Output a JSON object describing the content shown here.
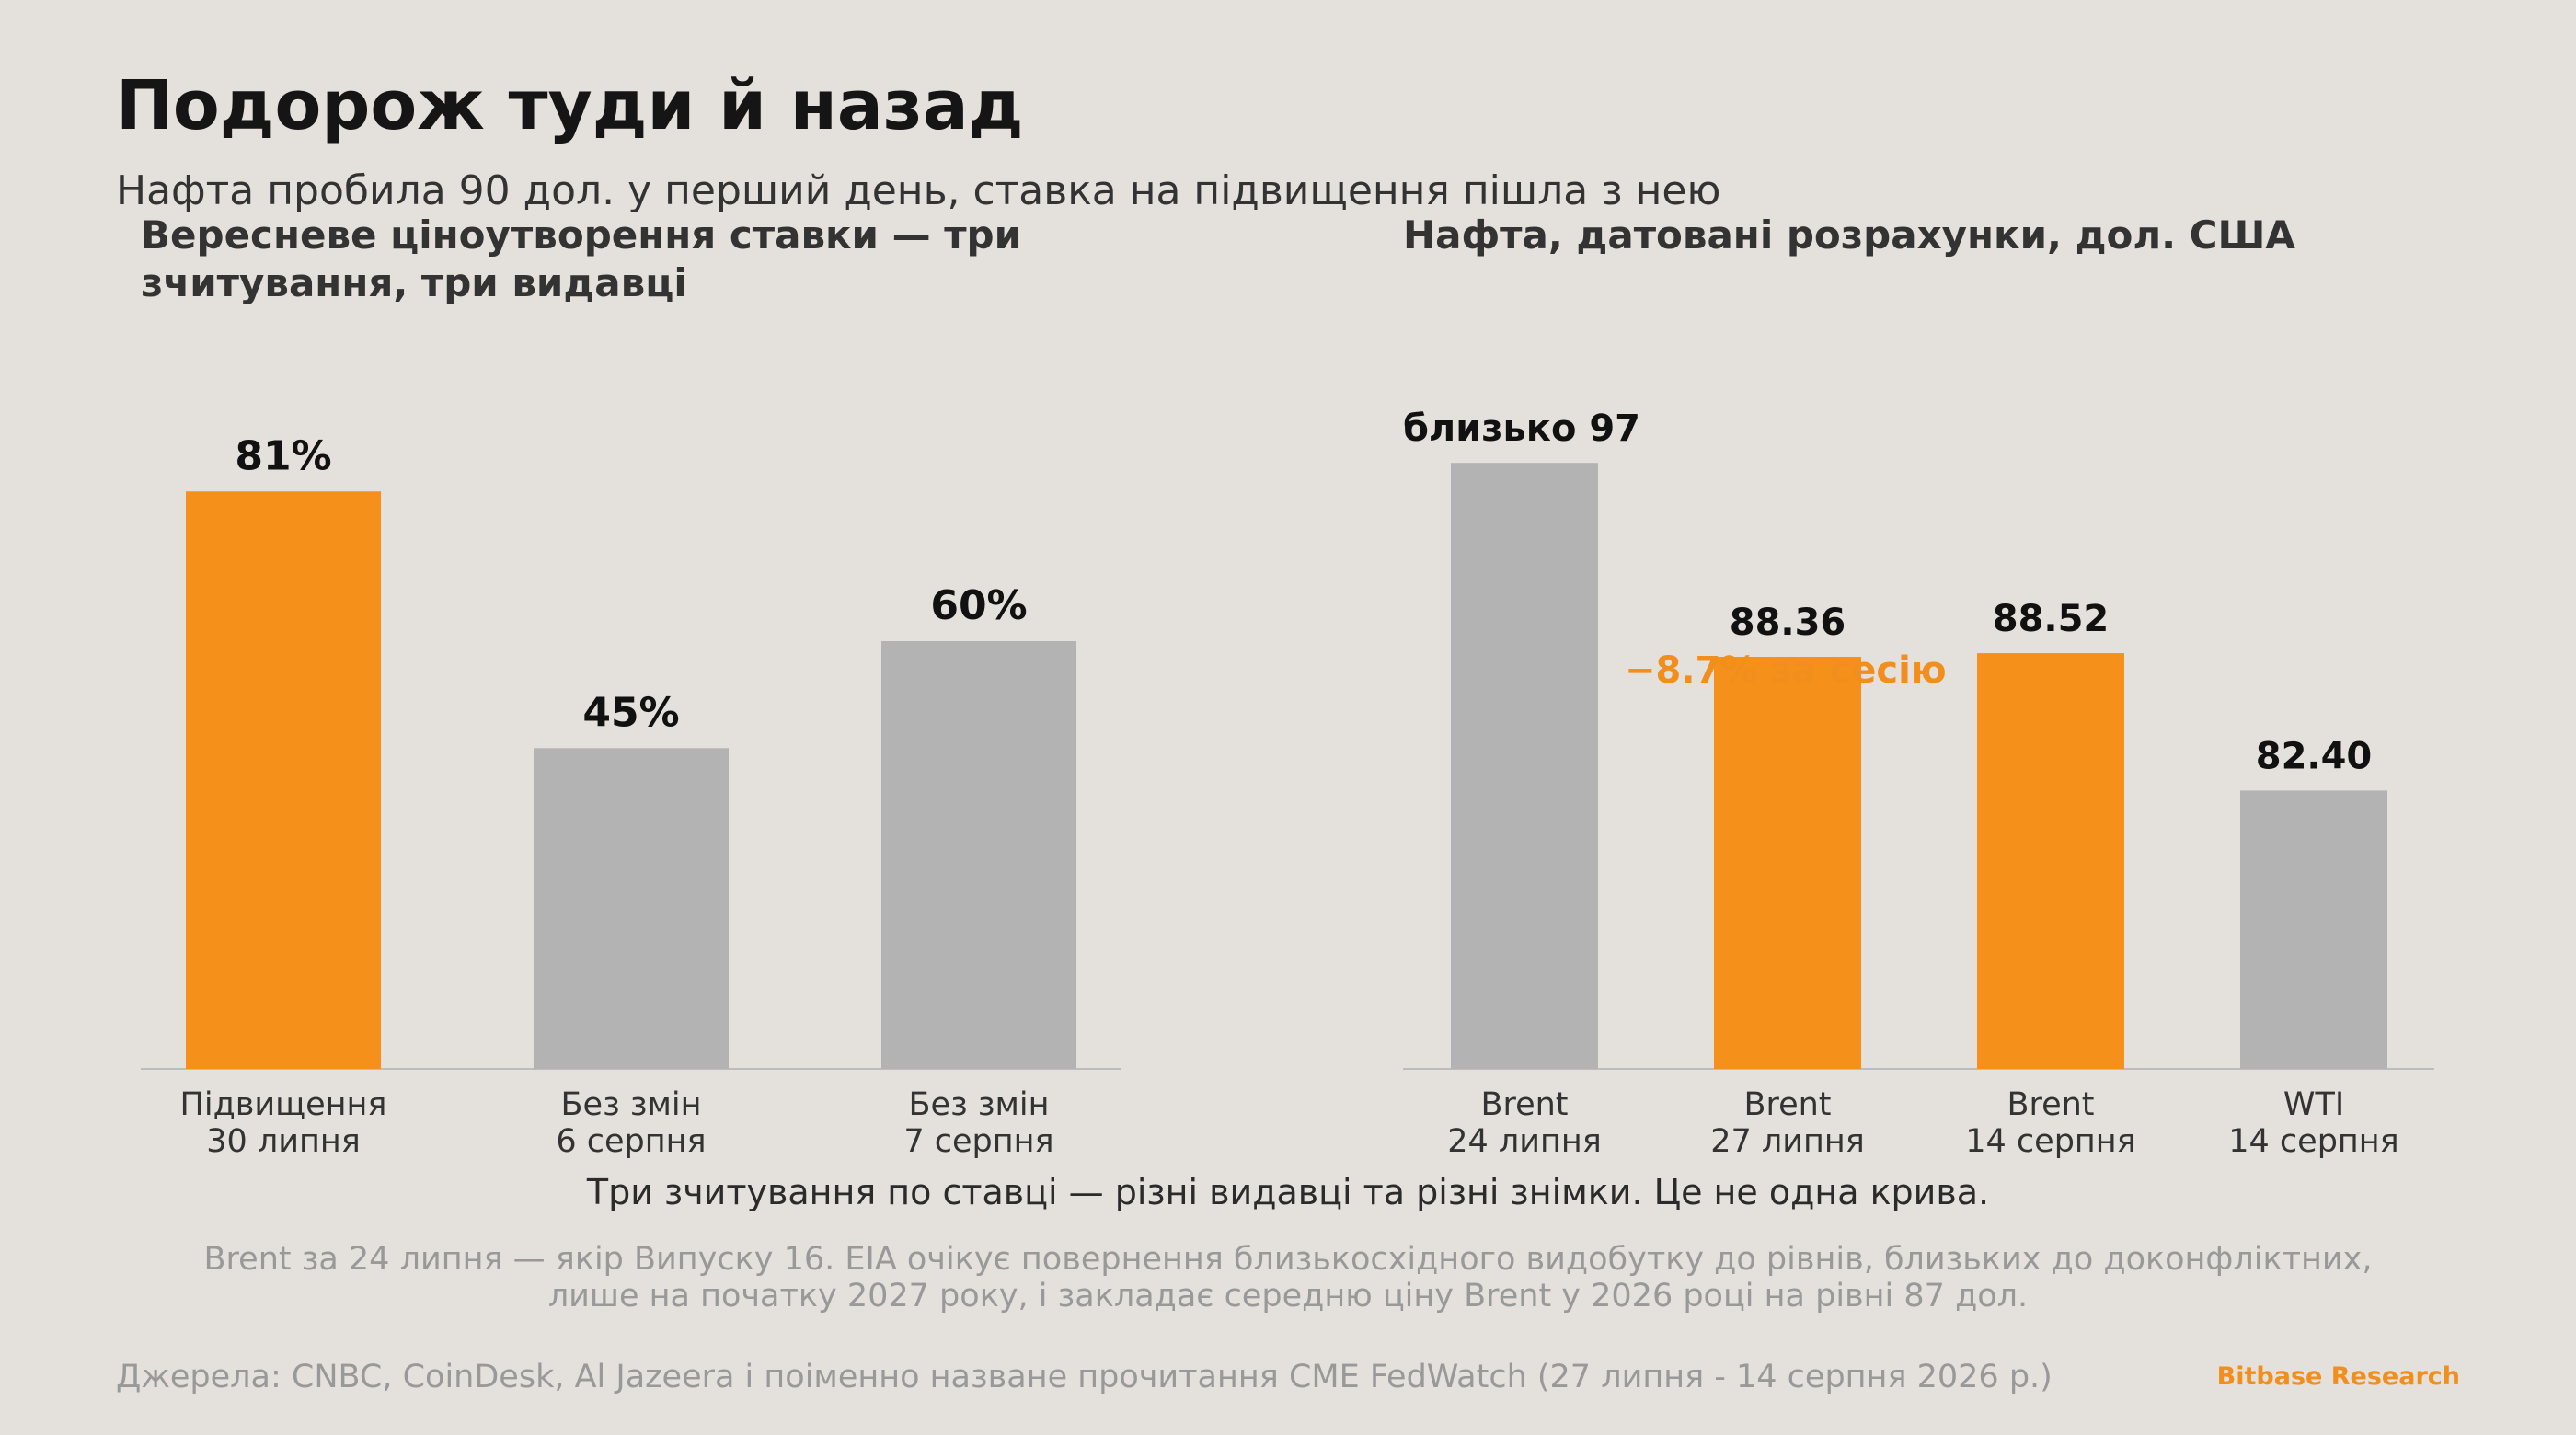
{
  "header": {
    "title": "Подорож туди й назад",
    "subtitle": "Нафта пробила 90 дол. у перший день, ставка на підвищення пішла з нею"
  },
  "colors": {
    "background": "#E4E0DB",
    "accent": "#F5901A",
    "neutral_bar": "#B3B3B3",
    "axis": "#BDBDBD"
  },
  "chart_data": [
    {
      "type": "bar",
      "title_lines": [
        "Вересневе ціноутворення ставки — три",
        "зчитування, три видавці"
      ],
      "categories": [
        [
          "Підвищення",
          "30 липня"
        ],
        [
          "Без змін",
          "6 серпня"
        ],
        [
          "Без змін",
          "7 серпня"
        ]
      ],
      "values": [
        81,
        45,
        60
      ],
      "value_labels": [
        "81%",
        "45%",
        "60%"
      ],
      "highlight": [
        true,
        false,
        false
      ],
      "ylim": [
        0,
        100
      ]
    },
    {
      "type": "bar",
      "title_lines": [
        "Нафта, датовані розрахунки, дол. США"
      ],
      "categories": [
        [
          "Brent",
          "24 липня"
        ],
        [
          "Brent",
          "27 липня"
        ],
        [
          "Brent",
          "14 серпня"
        ],
        [
          "WTI",
          "14 серпня"
        ]
      ],
      "values": [
        97,
        88.36,
        88.52,
        82.4
      ],
      "value_labels": [
        "близько 97",
        "88.36",
        "88.52",
        "82.40"
      ],
      "highlight": [
        false,
        true,
        true,
        false
      ],
      "ylim": [
        70,
        100
      ],
      "annotation": "−8.7% за сесію"
    }
  ],
  "note": "Три зчитування по ставці — різні видавці та різні знімки. Це не одна крива.",
  "footnote_lines": [
    "Brent за 24 липня — якір Випуску 16. EIA очікує повернення близькосхідного видобутку до рівнів, близьких до доконфліктних,",
    "лише на початку 2027 року, і закладає середню ціну Brent у 2026 році на рівні 87 дол."
  ],
  "source": "Джерела: CNBC, CoinDesk, Al Jazeera і поіменно назване прочитання CME FedWatch (27 липня - 14 серпня 2026 р.)",
  "brand": "Bitbase Research"
}
